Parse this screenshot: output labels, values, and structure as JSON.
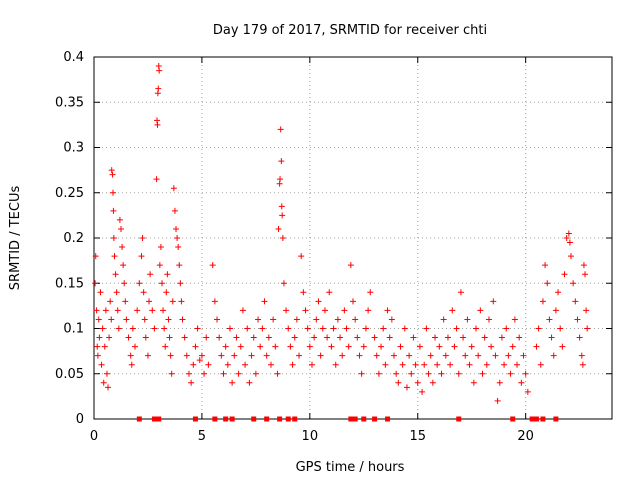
{
  "chart_data": {
    "type": "scatter",
    "title": "Day 179 of 2017, SRMTID for receiver chti",
    "xlabel": "GPS time / hours",
    "ylabel": "SRMTID / TECUs",
    "xlim": [
      0,
      24
    ],
    "ylim": [
      0,
      0.4
    ],
    "x_ticks": [
      {
        "value": 0,
        "label": "0"
      },
      {
        "value": 5,
        "label": "5"
      },
      {
        "value": 10,
        "label": "10"
      },
      {
        "value": 15,
        "label": "15"
      },
      {
        "value": 20,
        "label": "20"
      }
    ],
    "y_ticks": [
      {
        "value": 0,
        "label": "0"
      },
      {
        "value": 0.05,
        "label": "0.05"
      },
      {
        "value": 0.1,
        "label": "0.1"
      },
      {
        "value": 0.15,
        "label": "0.15"
      },
      {
        "value": 0.2,
        "label": "0.2"
      },
      {
        "value": 0.25,
        "label": "0.25"
      },
      {
        "value": 0.3,
        "label": "0.3"
      },
      {
        "value": 0.35,
        "label": "0.35"
      },
      {
        "value": 0.4,
        "label": "0.4"
      }
    ],
    "grid": true,
    "marker": "+",
    "color": "#ff0000",
    "series": [
      {
        "name": "SRMTID",
        "points": [
          [
            0.05,
            0.15
          ],
          [
            0.08,
            0.18
          ],
          [
            0.12,
            0.12
          ],
          [
            0.15,
            0.08
          ],
          [
            0.18,
            0.07
          ],
          [
            0.22,
            0.11
          ],
          [
            0.25,
            0.09
          ],
          [
            0.3,
            0.14
          ],
          [
            0.35,
            0.06
          ],
          [
            0.4,
            0.1
          ],
          [
            0.45,
            0.04
          ],
          [
            0.5,
            0.08
          ],
          [
            0.55,
            0.12
          ],
          [
            0.6,
            0.05
          ],
          [
            0.65,
            0.035
          ],
          [
            0.7,
            0.09
          ],
          [
            0.75,
            0.13
          ],
          [
            0.8,
            0.11
          ],
          [
            0.82,
            0.275
          ],
          [
            0.86,
            0.27
          ],
          [
            0.88,
            0.25
          ],
          [
            0.9,
            0.23
          ],
          [
            0.92,
            0.2
          ],
          [
            0.95,
            0.18
          ],
          [
            1.0,
            0.16
          ],
          [
            1.05,
            0.14
          ],
          [
            1.1,
            0.12
          ],
          [
            1.15,
            0.1
          ],
          [
            1.2,
            0.22
          ],
          [
            1.25,
            0.21
          ],
          [
            1.3,
            0.19
          ],
          [
            1.35,
            0.17
          ],
          [
            1.4,
            0.15
          ],
          [
            1.45,
            0.13
          ],
          [
            1.5,
            0.11
          ],
          [
            1.6,
            0.09
          ],
          [
            1.7,
            0.07
          ],
          [
            1.75,
            0.06
          ],
          [
            1.8,
            0.1
          ],
          [
            1.9,
            0.08
          ],
          [
            2.0,
            0.12
          ],
          [
            2.1,
            0.15
          ],
          [
            2.2,
            0.18
          ],
          [
            2.25,
            0.2
          ],
          [
            2.3,
            0.14
          ],
          [
            2.35,
            0.11
          ],
          [
            2.4,
            0.09
          ],
          [
            2.5,
            0.07
          ],
          [
            2.55,
            0.13
          ],
          [
            2.6,
            0.16
          ],
          [
            2.7,
            0.12
          ],
          [
            2.8,
            0.1
          ],
          [
            2.9,
            0.265
          ],
          [
            2.92,
            0.33
          ],
          [
            2.94,
            0.325
          ],
          [
            2.96,
            0.36
          ],
          [
            2.98,
            0.365
          ],
          [
            3.0,
            0.39
          ],
          [
            3.02,
            0.385
          ],
          [
            3.05,
            0.17
          ],
          [
            3.1,
            0.19
          ],
          [
            3.15,
            0.15
          ],
          [
            3.2,
            0.12
          ],
          [
            3.25,
            0.1
          ],
          [
            3.3,
            0.08
          ],
          [
            3.35,
            0.14
          ],
          [
            3.4,
            0.16
          ],
          [
            3.45,
            0.11
          ],
          [
            3.5,
            0.09
          ],
          [
            3.55,
            0.07
          ],
          [
            3.6,
            0.05
          ],
          [
            3.65,
            0.13
          ],
          [
            3.7,
            0.255
          ],
          [
            3.75,
            0.23
          ],
          [
            3.8,
            0.21
          ],
          [
            3.85,
            0.2
          ],
          [
            3.9,
            0.19
          ],
          [
            3.95,
            0.17
          ],
          [
            4.0,
            0.15
          ],
          [
            4.05,
            0.13
          ],
          [
            4.1,
            0.11
          ],
          [
            4.2,
            0.09
          ],
          [
            4.3,
            0.07
          ],
          [
            4.4,
            0.05
          ],
          [
            4.5,
            0.04
          ],
          [
            4.6,
            0.06
          ],
          [
            4.7,
            0.08
          ],
          [
            4.8,
            0.1
          ],
          [
            4.9,
            0.065
          ],
          [
            5.0,
            0.07
          ],
          [
            5.1,
            0.05
          ],
          [
            5.2,
            0.09
          ],
          [
            5.3,
            0.06
          ],
          [
            5.5,
            0.17
          ],
          [
            5.6,
            0.13
          ],
          [
            5.7,
            0.11
          ],
          [
            5.8,
            0.09
          ],
          [
            5.9,
            0.07
          ],
          [
            6.0,
            0.05
          ],
          [
            6.1,
            0.08
          ],
          [
            6.2,
            0.06
          ],
          [
            6.3,
            0.1
          ],
          [
            6.4,
            0.04
          ],
          [
            6.5,
            0.07
          ],
          [
            6.6,
            0.09
          ],
          [
            6.7,
            0.05
          ],
          [
            6.8,
            0.08
          ],
          [
            6.9,
            0.12
          ],
          [
            7.0,
            0.06
          ],
          [
            7.1,
            0.1
          ],
          [
            7.2,
            0.04
          ],
          [
            7.3,
            0.07
          ],
          [
            7.4,
            0.09
          ],
          [
            7.5,
            0.05
          ],
          [
            7.6,
            0.11
          ],
          [
            7.7,
            0.08
          ],
          [
            7.8,
            0.1
          ],
          [
            7.9,
            0.13
          ],
          [
            8.0,
            0.07
          ],
          [
            8.1,
            0.09
          ],
          [
            8.2,
            0.06
          ],
          [
            8.3,
            0.11
          ],
          [
            8.4,
            0.08
          ],
          [
            8.5,
            0.05
          ],
          [
            8.55,
            0.21
          ],
          [
            8.6,
            0.26
          ],
          [
            8.62,
            0.265
          ],
          [
            8.65,
            0.32
          ],
          [
            8.68,
            0.285
          ],
          [
            8.7,
            0.235
          ],
          [
            8.72,
            0.225
          ],
          [
            8.75,
            0.2
          ],
          [
            8.8,
            0.15
          ],
          [
            8.9,
            0.12
          ],
          [
            9.0,
            0.1
          ],
          [
            9.1,
            0.08
          ],
          [
            9.2,
            0.06
          ],
          [
            9.3,
            0.09
          ],
          [
            9.4,
            0.11
          ],
          [
            9.5,
            0.07
          ],
          [
            9.6,
            0.18
          ],
          [
            9.7,
            0.14
          ],
          [
            9.8,
            0.12
          ],
          [
            9.9,
            0.1
          ],
          [
            10.0,
            0.08
          ],
          [
            10.1,
            0.06
          ],
          [
            10.2,
            0.09
          ],
          [
            10.3,
            0.11
          ],
          [
            10.4,
            0.13
          ],
          [
            10.5,
            0.07
          ],
          [
            10.6,
            0.1
          ],
          [
            10.7,
            0.12
          ],
          [
            10.8,
            0.09
          ],
          [
            10.9,
            0.14
          ],
          [
            11.0,
            0.08
          ],
          [
            11.1,
            0.1
          ],
          [
            11.2,
            0.06
          ],
          [
            11.3,
            0.11
          ],
          [
            11.4,
            0.09
          ],
          [
            11.5,
            0.07
          ],
          [
            11.6,
            0.12
          ],
          [
            11.7,
            0.1
          ],
          [
            11.8,
            0.08
          ],
          [
            11.9,
            0.17
          ],
          [
            12.0,
            0.13
          ],
          [
            12.1,
            0.11
          ],
          [
            12.2,
            0.09
          ],
          [
            12.3,
            0.07
          ],
          [
            12.4,
            0.05
          ],
          [
            12.5,
            0.08
          ],
          [
            12.6,
            0.1
          ],
          [
            12.7,
            0.12
          ],
          [
            12.8,
            0.14
          ],
          [
            13.0,
            0.09
          ],
          [
            13.1,
            0.07
          ],
          [
            13.2,
            0.05
          ],
          [
            13.3,
            0.08
          ],
          [
            13.4,
            0.1
          ],
          [
            13.5,
            0.06
          ],
          [
            13.6,
            0.12
          ],
          [
            13.7,
            0.09
          ],
          [
            13.8,
            0.11
          ],
          [
            13.9,
            0.07
          ],
          [
            14.0,
            0.05
          ],
          [
            14.1,
            0.04
          ],
          [
            14.2,
            0.08
          ],
          [
            14.3,
            0.06
          ],
          [
            14.4,
            0.1
          ],
          [
            14.5,
            0.035
          ],
          [
            14.6,
            0.07
          ],
          [
            14.7,
            0.05
          ],
          [
            14.8,
            0.09
          ],
          [
            14.9,
            0.06
          ],
          [
            15.0,
            0.04
          ],
          [
            15.1,
            0.08
          ],
          [
            15.2,
            0.03
          ],
          [
            15.3,
            0.06
          ],
          [
            15.4,
            0.1
          ],
          [
            15.5,
            0.05
          ],
          [
            15.6,
            0.07
          ],
          [
            15.7,
            0.04
          ],
          [
            15.8,
            0.09
          ],
          [
            15.9,
            0.06
          ],
          [
            16.0,
            0.08
          ],
          [
            16.1,
            0.05
          ],
          [
            16.2,
            0.11
          ],
          [
            16.3,
            0.07
          ],
          [
            16.4,
            0.09
          ],
          [
            16.5,
            0.06
          ],
          [
            16.6,
            0.12
          ],
          [
            16.7,
            0.08
          ],
          [
            16.8,
            0.1
          ],
          [
            16.9,
            0.05
          ],
          [
            17.0,
            0.14
          ],
          [
            17.1,
            0.09
          ],
          [
            17.2,
            0.07
          ],
          [
            17.3,
            0.11
          ],
          [
            17.4,
            0.06
          ],
          [
            17.5,
            0.08
          ],
          [
            17.6,
            0.04
          ],
          [
            17.7,
            0.1
          ],
          [
            17.8,
            0.07
          ],
          [
            17.9,
            0.12
          ],
          [
            18.0,
            0.05
          ],
          [
            18.1,
            0.09
          ],
          [
            18.2,
            0.06
          ],
          [
            18.3,
            0.11
          ],
          [
            18.4,
            0.08
          ],
          [
            18.5,
            0.13
          ],
          [
            18.6,
            0.07
          ],
          [
            18.7,
            0.02
          ],
          [
            18.8,
            0.04
          ],
          [
            18.9,
            0.09
          ],
          [
            19.0,
            0.06
          ],
          [
            19.1,
            0.1
          ],
          [
            19.2,
            0.07
          ],
          [
            19.3,
            0.05
          ],
          [
            19.4,
            0.08
          ],
          [
            19.5,
            0.11
          ],
          [
            19.6,
            0.06
          ],
          [
            19.7,
            0.09
          ],
          [
            19.8,
            0.04
          ],
          [
            19.9,
            0.07
          ],
          [
            20.0,
            0.05
          ],
          [
            20.1,
            0.03
          ],
          [
            20.5,
            0.08
          ],
          [
            20.6,
            0.1
          ],
          [
            20.7,
            0.06
          ],
          [
            20.8,
            0.13
          ],
          [
            20.9,
            0.17
          ],
          [
            21.0,
            0.15
          ],
          [
            21.1,
            0.11
          ],
          [
            21.2,
            0.09
          ],
          [
            21.3,
            0.07
          ],
          [
            21.4,
            0.12
          ],
          [
            21.5,
            0.14
          ],
          [
            21.6,
            0.1
          ],
          [
            21.7,
            0.08
          ],
          [
            21.8,
            0.16
          ],
          [
            21.9,
            0.2
          ],
          [
            22.0,
            0.205
          ],
          [
            22.05,
            0.195
          ],
          [
            22.1,
            0.18
          ],
          [
            22.2,
            0.15
          ],
          [
            22.3,
            0.13
          ],
          [
            22.4,
            0.11
          ],
          [
            22.5,
            0.09
          ],
          [
            22.6,
            0.07
          ],
          [
            22.65,
            0.06
          ],
          [
            22.7,
            0.17
          ],
          [
            22.75,
            0.16
          ],
          [
            22.8,
            0.12
          ],
          [
            22.85,
            0.1
          ]
        ]
      }
    ],
    "baseline_markers_x": [
      2.1,
      2.8,
      3.0,
      4.7,
      5.6,
      6.1,
      6.4,
      7.4,
      8.0,
      8.6,
      9.0,
      9.3,
      11.9,
      12.1,
      12.5,
      13.0,
      13.6,
      16.9,
      19.4,
      20.3,
      20.5,
      20.8,
      21.4
    ]
  }
}
